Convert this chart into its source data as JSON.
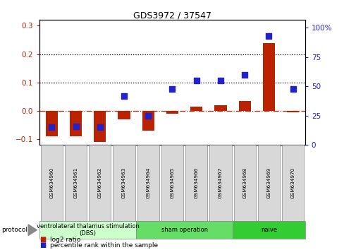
{
  "title": "GDS3972 / 37547",
  "samples": [
    "GSM634960",
    "GSM634961",
    "GSM634962",
    "GSM634963",
    "GSM634964",
    "GSM634965",
    "GSM634966",
    "GSM634967",
    "GSM634968",
    "GSM634969",
    "GSM634970"
  ],
  "log2_ratio": [
    -0.09,
    -0.09,
    -0.11,
    -0.03,
    -0.07,
    -0.01,
    0.015,
    0.02,
    0.035,
    0.24,
    -0.005
  ],
  "percentile_rank": [
    15,
    16,
    15,
    42,
    25,
    48,
    55,
    55,
    60,
    93,
    48
  ],
  "groups": [
    {
      "label": "ventrolateral thalamus stimulation\n(DBS)",
      "start": 0,
      "end": 3,
      "color": "#ccffcc"
    },
    {
      "label": "sham operation",
      "start": 4,
      "end": 7,
      "color": "#66dd66"
    },
    {
      "label": "naive",
      "start": 8,
      "end": 10,
      "color": "#33cc33"
    }
  ],
  "bar_color": "#bb2200",
  "dot_color": "#2222cc",
  "ylim_left": [
    -0.12,
    0.32
  ],
  "ylim_right": [
    0,
    106.67
  ],
  "yticks_left": [
    -0.1,
    0.0,
    0.1,
    0.2,
    0.3
  ],
  "yticks_right": [
    0,
    25,
    50,
    75,
    100
  ],
  "hlines": [
    0.1,
    0.2
  ],
  "background_color": "#ffffff"
}
